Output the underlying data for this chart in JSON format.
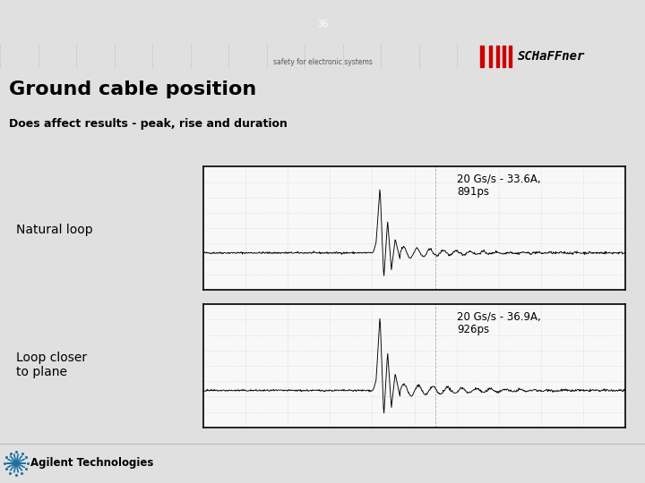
{
  "title": "Ground cable position",
  "subtitle": "Does affect results - peak, rise and duration",
  "header_text": "safety for electronic systems",
  "label1": "Natural loop",
  "label2": "Loop closer\nto plane",
  "annotation1": "20 Gs/s - 33.6A,\n891ps",
  "annotation2": "20 Gs/s - 36.9A,\n926ps",
  "bg_color": "#e0e0e0",
  "header_red": "#cc0000",
  "plot_bg": "#f8f8f8",
  "slide_number": "36",
  "schaffner_text": "SCHaFFner",
  "agilent_text": "Agilent Technologies"
}
